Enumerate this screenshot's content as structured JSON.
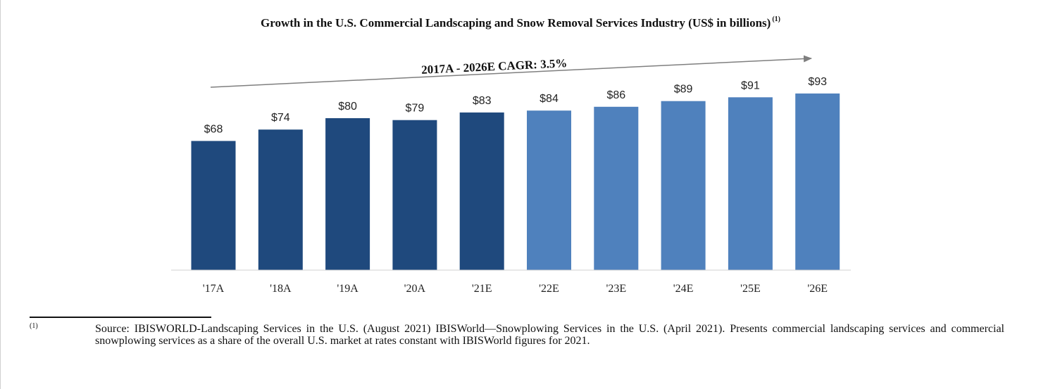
{
  "chart_data": {
    "type": "bar",
    "title": "Growth in the U.S. Commercial Landscaping and Snow Removal Services Industry (US$ in billions)",
    "title_footnote_marker": "(1)",
    "categories": [
      "'17A",
      "'18A",
      "'19A",
      "'20A",
      "'21E",
      "'22E",
      "'23E",
      "'24E",
      "'25E",
      "'26E"
    ],
    "values": [
      68,
      74,
      80,
      79,
      83,
      84,
      86,
      89,
      91,
      93
    ],
    "data_labels": [
      "$68",
      "$74",
      "$80",
      "$79",
      "$83",
      "$84",
      "$86",
      "$89",
      "$91",
      "$93"
    ],
    "bar_colors": [
      "#1f497d",
      "#1f497d",
      "#1f497d",
      "#1f497d",
      "#1f497d",
      "#4f81bd",
      "#4f81bd",
      "#4f81bd",
      "#4f81bd",
      "#4f81bd"
    ],
    "annotation": "2017A - 2026E CAGR: 3.5%",
    "arrow_color": "#7f7f7f",
    "xlabel": "",
    "ylabel": "",
    "grid": false,
    "legend": "none"
  },
  "footnote": {
    "marker": "(1)",
    "text": "Source: IBISWORLD-Landscaping Services in the U.S. (August 2021) IBISWorld—Snowplowing Services in the U.S. (April 2021). Presents commercial landscaping services and commercial snowplowing services as a share of the overall U.S. market at rates constant with IBISWorld figures for 2021."
  }
}
